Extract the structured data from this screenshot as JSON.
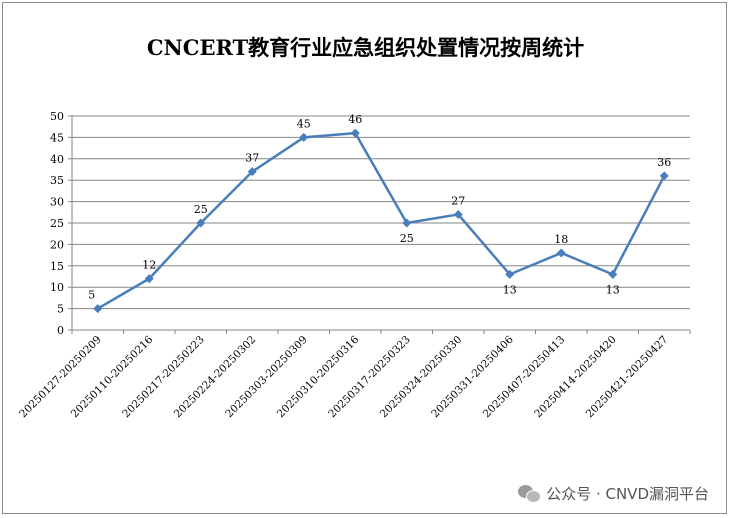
{
  "chart_data": {
    "type": "line",
    "title": "CNCERT教育行业应急组织处置情况按周统计",
    "categories": [
      "20250127-20250209",
      "20250110-20250216",
      "20250217-20250223",
      "20250224-20250302",
      "20250303-20250309",
      "20250310-20250316",
      "20250317-20250323",
      "20250324-20250330",
      "20250331-20250406",
      "20250407-20250413",
      "20250414-20250420",
      "20250421-20250427"
    ],
    "series": [
      {
        "values": [
          5,
          12,
          25,
          37,
          45,
          46,
          25,
          27,
          13,
          18,
          13,
          36
        ]
      }
    ],
    "ylim": [
      0,
      50
    ],
    "yticks": [
      0,
      5,
      10,
      15,
      20,
      25,
      30,
      35,
      40,
      45,
      50
    ],
    "grid": true,
    "line_color": "#4a7ebb",
    "xlabel": "",
    "ylabel": ""
  },
  "watermark": {
    "text": "公众号 · CNVD漏洞平台",
    "icon": "wechat-icon"
  }
}
